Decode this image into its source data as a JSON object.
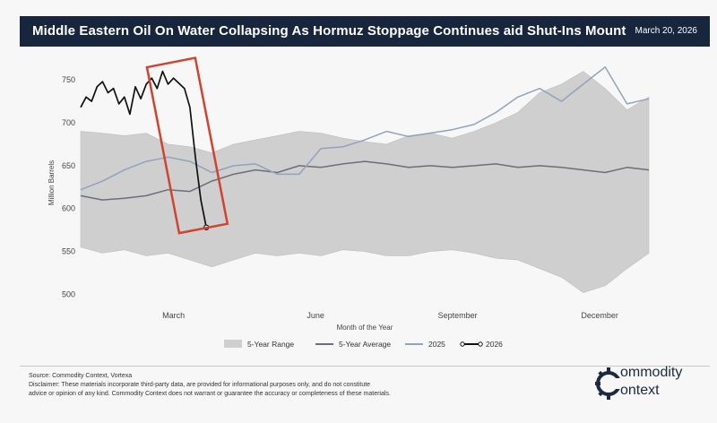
{
  "header": {
    "title": "Middle Eastern Oil On Water Collapsing As Hormuz Stoppage Continues aid Shut-Ins Mount",
    "date": "March 20, 2026"
  },
  "chart_data": {
    "type": "line",
    "title": "Middle Eastern Oil On Water Collapsing As Hormuz Stoppage Continues aid Shut-Ins Mount",
    "xlabel": "Month of the Year",
    "ylabel": "Million Barrels",
    "xlim": [
      0,
      52
    ],
    "ylim": [
      490,
      770
    ],
    "x_ticks": [
      {
        "label": "March",
        "value": 8.5
      },
      {
        "label": "June",
        "value": 21.5
      },
      {
        "label": "September",
        "value": 34.5
      },
      {
        "label": "December",
        "value": 47.5
      }
    ],
    "y_ticks": [
      500,
      550,
      600,
      650,
      700,
      750
    ],
    "series": [
      {
        "name": "5-Year Range",
        "kind": "band",
        "color": "#cfcfcf",
        "x": [
          0,
          2,
          4,
          6,
          8,
          10,
          12,
          14,
          16,
          18,
          20,
          22,
          24,
          26,
          28,
          30,
          32,
          34,
          36,
          38,
          40,
          42,
          44,
          46,
          48,
          50,
          52
        ],
        "low": [
          555,
          548,
          552,
          545,
          548,
          540,
          532,
          540,
          548,
          545,
          548,
          545,
          552,
          550,
          545,
          545,
          550,
          552,
          548,
          542,
          540,
          530,
          520,
          502,
          510,
          530,
          548
        ],
        "high": [
          690,
          688,
          685,
          688,
          675,
          672,
          665,
          675,
          680,
          685,
          690,
          688,
          682,
          678,
          675,
          685,
          688,
          682,
          690,
          700,
          712,
          735,
          745,
          760,
          740,
          715,
          730
        ]
      },
      {
        "name": "5-Year Average",
        "kind": "line",
        "color": "#6b6f7c",
        "x": [
          0,
          2,
          4,
          6,
          8,
          10,
          12,
          14,
          16,
          18,
          20,
          22,
          24,
          26,
          28,
          30,
          32,
          34,
          36,
          38,
          40,
          42,
          44,
          46,
          48,
          50,
          52
        ],
        "y": [
          615,
          610,
          612,
          615,
          622,
          620,
          632,
          640,
          645,
          642,
          650,
          648,
          652,
          655,
          652,
          648,
          650,
          648,
          650,
          652,
          648,
          650,
          648,
          645,
          642,
          648,
          645
        ]
      },
      {
        "name": "2025",
        "kind": "line",
        "color": "#8fa3bd",
        "x": [
          0,
          2,
          4,
          6,
          8,
          10,
          12,
          14,
          16,
          18,
          20,
          22,
          24,
          26,
          28,
          30,
          32,
          34,
          36,
          38,
          40,
          42,
          44,
          46,
          48,
          50,
          52
        ],
        "y": [
          622,
          632,
          645,
          655,
          660,
          655,
          642,
          650,
          652,
          640,
          640,
          670,
          672,
          680,
          690,
          684,
          688,
          692,
          698,
          712,
          730,
          740,
          725,
          745,
          765,
          722,
          728
        ]
      },
      {
        "name": "2026",
        "kind": "line",
        "color": "#111111",
        "x": [
          0,
          0.5,
          1,
          1.5,
          2,
          2.5,
          3,
          3.5,
          4,
          4.5,
          5,
          5.5,
          6,
          6.5,
          7,
          7.5,
          8,
          8.5,
          9,
          9.5,
          10,
          10.5,
          11,
          11.5
        ],
        "y": [
          718,
          730,
          725,
          742,
          748,
          735,
          740,
          722,
          730,
          710,
          742,
          728,
          745,
          752,
          740,
          760,
          745,
          752,
          746,
          740,
          718,
          660,
          610,
          578
        ]
      }
    ],
    "legend": {
      "position": "bottom",
      "items": [
        "5-Year Range",
        "5-Year Average",
        "2025",
        "2026"
      ]
    },
    "grid": false,
    "annotation": {
      "type": "highlight-box",
      "color": "#d0432f",
      "x_range": [
        7.5,
        12
      ],
      "y_range": [
        575,
        772
      ]
    }
  },
  "footer": {
    "source": "Source: Commodity Context, Vortexa",
    "disclaimer_line1": "Disclaimer: These materials incorporate third-party data, are provided for informational purposes only, and do not constitute",
    "disclaimer_line2": "advice or opinion of any kind. Commodity Context does not warrant or guarantee the accuracy or completeness of these materials."
  },
  "logo": {
    "line1": "ommodity",
    "line2": "ontext"
  }
}
